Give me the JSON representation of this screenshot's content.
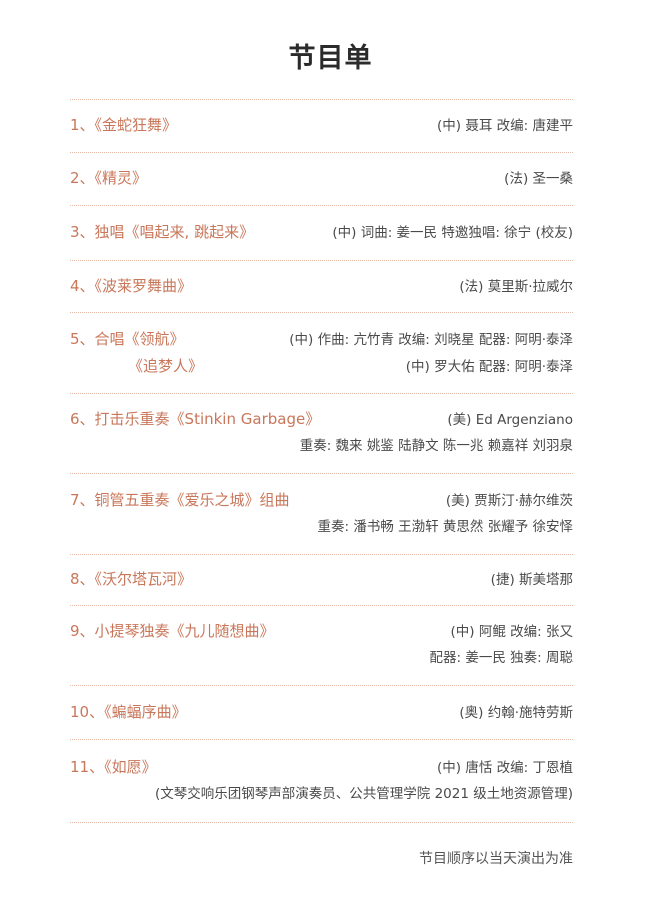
{
  "title": "节目单",
  "items": [
    {
      "lines": [
        {
          "left": "1、《金蛇狂舞》",
          "right": "(中) 聂耳  改编: 唐建平"
        }
      ]
    },
    {
      "lines": [
        {
          "left": "2、《精灵》",
          "right": "(法) 圣一桑"
        }
      ]
    },
    {
      "lines": [
        {
          "left": "3、独唱《唱起来, 跳起来》",
          "right": "(中) 词曲: 姜一民  特邀独唱: 徐宁 (校友)"
        }
      ]
    },
    {
      "lines": [
        {
          "left": "4、《波莱罗舞曲》",
          "right": "(法) 莫里斯·拉威尔"
        }
      ]
    },
    {
      "lines": [
        {
          "left": "5、合唱《领航》",
          "right": "(中) 作曲: 亢竹青  改编: 刘晓星  配器: 阿明·泰泽"
        },
        {
          "left": "《追梦人》",
          "right": "(中) 罗大佑  配器: 阿明·泰泽",
          "indent": true
        }
      ]
    },
    {
      "lines": [
        {
          "left": "6、打击乐重奏《Stinkin Garbage》",
          "right": "(美) Ed Argenziano"
        },
        {
          "left": "",
          "right": "重奏: 魏来  姚鉴  陆静文  陈一兆  赖嘉祥  刘羽泉"
        }
      ]
    },
    {
      "lines": [
        {
          "left": "7、铜管五重奏《爱乐之城》组曲",
          "right": "(美) 贾斯汀·赫尔维茨"
        },
        {
          "left": "",
          "right": "重奏: 潘书畅  王渤轩  黄思然  张耀予  徐安怿"
        }
      ]
    },
    {
      "lines": [
        {
          "left": "8、《沃尔塔瓦河》",
          "right": "(捷) 斯美塔那"
        }
      ]
    },
    {
      "lines": [
        {
          "left": "9、小提琴独奏《九儿随想曲》",
          "right": "(中) 阿鲲  改编: 张又"
        },
        {
          "left": "",
          "right": "配器: 姜一民  独奏: 周聪"
        }
      ]
    },
    {
      "lines": [
        {
          "left": "10、《蝙蝠序曲》",
          "right": "(奥) 约翰·施特劳斯"
        }
      ]
    },
    {
      "lines": [
        {
          "left": "11、《如愿》",
          "right": "(中) 唐恬  改编: 丁恩植"
        },
        {
          "left": "",
          "right": "(文琴交响乐团钢琴声部演奏员、公共管理学院 2021 级土地资源管理)"
        }
      ]
    }
  ],
  "footer": "节目顺序以当天演出为准",
  "colors": {
    "title_text": "#c9775a",
    "body_text": "#4a4a4a",
    "divider": "#e3b9a8"
  }
}
